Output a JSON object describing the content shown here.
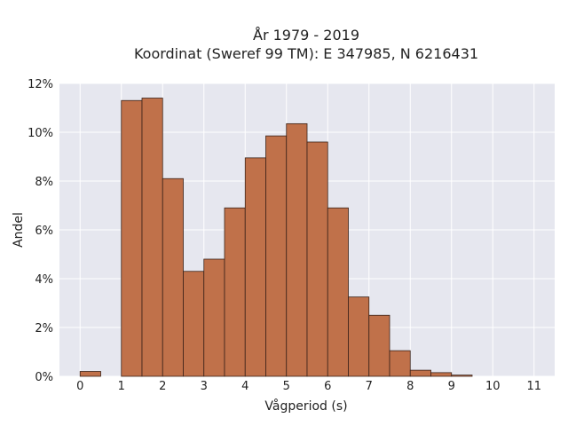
{
  "chart_data": {
    "type": "bar",
    "title_lines": [
      "År 1979 - 2019",
      "Koordinat (Sweref 99 TM): E 347985, N 6216431"
    ],
    "xlabel": "Vågperiod (s)",
    "ylabel": "Andel",
    "xlim": [
      -0.5,
      11.5
    ],
    "ylim": [
      0,
      12
    ],
    "x_ticks": [
      0,
      1,
      2,
      3,
      4,
      5,
      6,
      7,
      8,
      9,
      10,
      11
    ],
    "y_ticks": [
      0,
      2,
      4,
      6,
      8,
      10,
      12
    ],
    "y_tick_labels": [
      "0%",
      "2%",
      "4%",
      "6%",
      "8%",
      "10%",
      "12%"
    ],
    "bin_width": 0.5,
    "bins": [
      {
        "x0": 0.0,
        "value": 0.2
      },
      {
        "x0": 1.0,
        "value": 11.3
      },
      {
        "x0": 1.5,
        "value": 11.4
      },
      {
        "x0": 2.0,
        "value": 8.1
      },
      {
        "x0": 2.5,
        "value": 4.3
      },
      {
        "x0": 3.0,
        "value": 4.8
      },
      {
        "x0": 3.5,
        "value": 6.9
      },
      {
        "x0": 4.0,
        "value": 8.95
      },
      {
        "x0": 4.5,
        "value": 9.85
      },
      {
        "x0": 5.0,
        "value": 10.35
      },
      {
        "x0": 5.5,
        "value": 9.6
      },
      {
        "x0": 6.0,
        "value": 6.9
      },
      {
        "x0": 6.5,
        "value": 3.25
      },
      {
        "x0": 7.0,
        "value": 2.5
      },
      {
        "x0": 7.5,
        "value": 1.05
      },
      {
        "x0": 8.0,
        "value": 0.25
      },
      {
        "x0": 8.5,
        "value": 0.15
      },
      {
        "x0": 9.0,
        "value": 0.05
      }
    ],
    "bar_color": "#c0714a",
    "bar_edge_color": "#3a2218",
    "grid": true,
    "background_color": "#e6e7ef",
    "grid_color": "#ffffff"
  }
}
